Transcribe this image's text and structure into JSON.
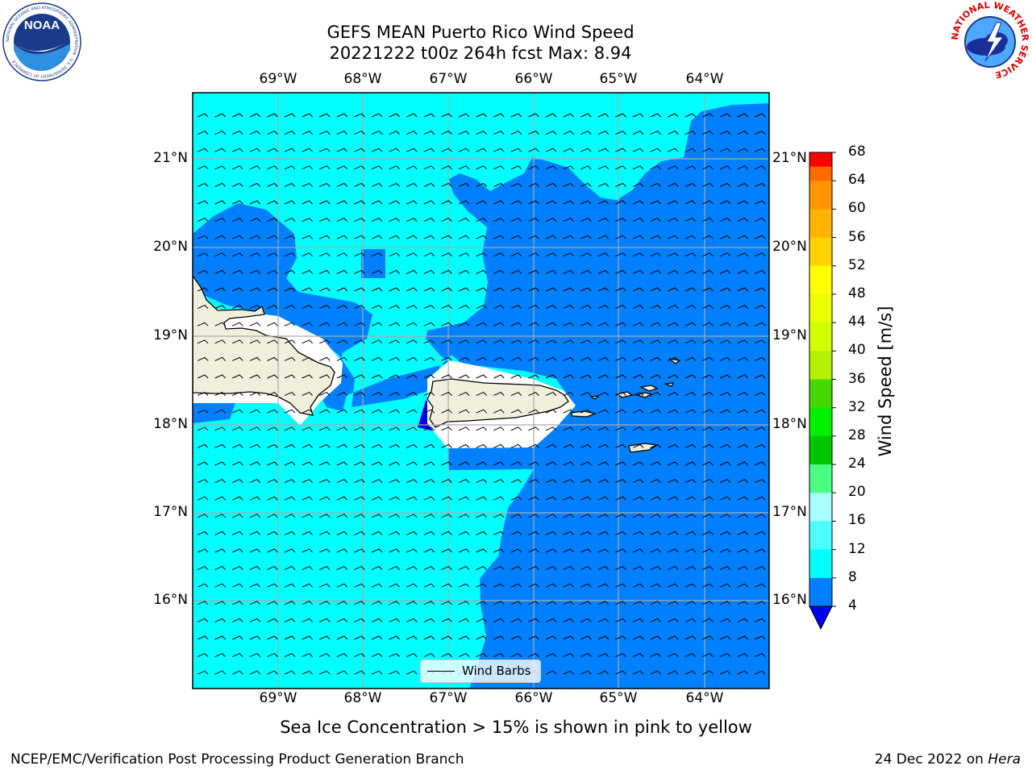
{
  "title": {
    "line1": "GEFS MEAN Puerto Rico Wind Speed",
    "line2": "20221222 t00z 264h fcst   Max: 8.94"
  },
  "map": {
    "lon_labels": [
      "69°W",
      "68°W",
      "67°W",
      "66°W",
      "65°W",
      "64°W"
    ],
    "lat_labels": [
      "21°N",
      "20°N",
      "19°N",
      "18°N",
      "17°N",
      "16°N"
    ],
    "land_color": "#efefdb",
    "legend_label": "Wind Barbs"
  },
  "colorbar": {
    "label": "Wind Speed [m/s]",
    "ticks": [
      "68",
      "64",
      "60",
      "56",
      "52",
      "48",
      "44",
      "40",
      "36",
      "32",
      "28",
      "24",
      "20",
      "16",
      "12",
      "8",
      "4"
    ],
    "colors": [
      "#ff0000",
      "#ff3500",
      "#ff6a00",
      "#ff9500",
      "#ffb400",
      "#ffd200",
      "#ffff00",
      "#eaff00",
      "#d2ff00",
      "#b4f000",
      "#46d700",
      "#00f000",
      "#00c800",
      "#4bff82",
      "#aaffff",
      "#4bffff",
      "#00ffff",
      "#0080ff"
    ],
    "under_color": "#0000f0"
  },
  "footer": {
    "note": "Sea Ice Concentration > 15% is shown in pink to yellow",
    "credit": "NCEP/EMC/Verification Post Processing Product Generation Branch",
    "date": "24 Dec 2022 on",
    "host": "Hera"
  },
  "logos": {
    "left": "NOAA",
    "left_ring": "NATIONAL OCEANIC AND ATMOSPHERIC ADMINISTRATION · U.S. DEPARTMENT OF COMMERCE",
    "right_ring": "NATIONAL WEATHER SERVICE"
  }
}
